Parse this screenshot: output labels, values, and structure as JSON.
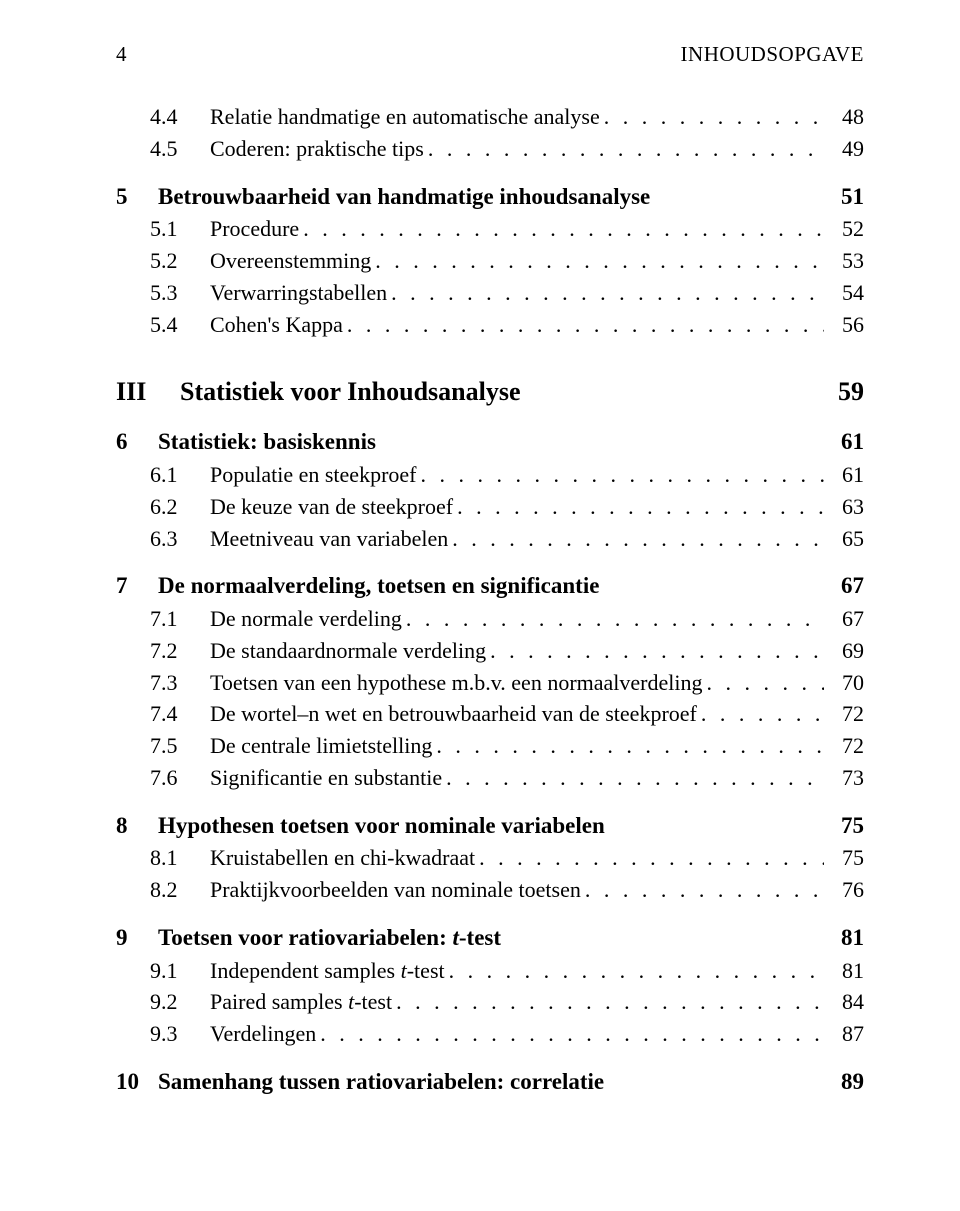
{
  "page_number": "4",
  "running_title": "INHOUDSOPGAVE",
  "typography": {
    "body_fontsize_pt": 16,
    "chapter_fontsize_pt": 17,
    "part_fontsize_pt": 19,
    "font_family": "Palatino-like serif",
    "text_color": "#000000",
    "background_color": "#ffffff"
  },
  "entries": [
    {
      "level": "section",
      "number": "4.4",
      "title": "Relatie handmatige en automatische analyse",
      "page": "48",
      "dots": true
    },
    {
      "level": "section",
      "number": "4.5",
      "title": "Coderen: praktische tips",
      "page": "49",
      "dots": true
    },
    {
      "level": "chapter",
      "number": "5",
      "title": "Betrouwbaarheid van handmatige inhoudsanalyse",
      "page": "51",
      "dots": false
    },
    {
      "level": "section",
      "number": "5.1",
      "title": "Procedure",
      "page": "52",
      "dots": true
    },
    {
      "level": "section",
      "number": "5.2",
      "title": "Overeenstemming",
      "page": "53",
      "dots": true
    },
    {
      "level": "section",
      "number": "5.3",
      "title": "Verwarringstabellen",
      "page": "54",
      "dots": true
    },
    {
      "level": "section",
      "number": "5.4",
      "title": "Cohen's Kappa",
      "page": "56",
      "dots": true
    },
    {
      "level": "part",
      "number": "III",
      "title": "Statistiek voor Inhoudsanalyse",
      "page": "59",
      "dots": false
    },
    {
      "level": "chapter",
      "number": "6",
      "title": "Statistiek: basiskennis",
      "page": "61",
      "dots": false
    },
    {
      "level": "section",
      "number": "6.1",
      "title": "Populatie en steekproef",
      "page": "61",
      "dots": true
    },
    {
      "level": "section",
      "number": "6.2",
      "title": "De keuze van de steekproef",
      "page": "63",
      "dots": true
    },
    {
      "level": "section",
      "number": "6.3",
      "title": "Meetniveau van variabelen",
      "page": "65",
      "dots": true
    },
    {
      "level": "chapter",
      "number": "7",
      "title": "De normaalverdeling, toetsen en significantie",
      "page": "67",
      "dots": false
    },
    {
      "level": "section",
      "number": "7.1",
      "title": "De normale verdeling",
      "page": "67",
      "dots": true
    },
    {
      "level": "section",
      "number": "7.2",
      "title": "De standaardnormale verdeling",
      "page": "69",
      "dots": true
    },
    {
      "level": "section",
      "number": "7.3",
      "title": "Toetsen van een hypothese m.b.v. een normaalverdeling",
      "page": "70",
      "dots": true
    },
    {
      "level": "section",
      "number": "7.4",
      "title": "De wortel–n wet en betrouwbaarheid van de steekproef",
      "page": "72",
      "dots": true
    },
    {
      "level": "section",
      "number": "7.5",
      "title": "De centrale limietstelling",
      "page": "72",
      "dots": true
    },
    {
      "level": "section",
      "number": "7.6",
      "title": "Significantie en substantie",
      "page": "73",
      "dots": true
    },
    {
      "level": "chapter",
      "number": "8",
      "title": "Hypothesen toetsen voor nominale variabelen",
      "page": "75",
      "dots": false
    },
    {
      "level": "section",
      "number": "8.1",
      "title": "Kruistabellen en chi-kwadraat",
      "page": "75",
      "dots": true
    },
    {
      "level": "section",
      "number": "8.2",
      "title": "Praktijkvoorbeelden van nominale toetsen",
      "page": "76",
      "dots": true
    },
    {
      "level": "chapter",
      "number": "9",
      "title_html": "Toetsen voor ratiovariabelen: <span class=\"italic\">t</span>-test",
      "title": "Toetsen voor ratiovariabelen: t-test",
      "page": "81",
      "dots": false
    },
    {
      "level": "section",
      "number": "9.1",
      "title_html": "Independent samples <span class=\"italic\">t</span>-test",
      "title": "Independent samples t-test",
      "page": "81",
      "dots": true
    },
    {
      "level": "section",
      "number": "9.2",
      "title_html": "Paired samples <span class=\"italic\">t</span>-test",
      "title": "Paired samples t-test",
      "page": "84",
      "dots": true
    },
    {
      "level": "section",
      "number": "9.3",
      "title": "Verdelingen",
      "page": "87",
      "dots": true
    },
    {
      "level": "chapter",
      "number": "10",
      "title": "Samenhang tussen ratiovariabelen: correlatie",
      "page": "89",
      "dots": false
    }
  ]
}
